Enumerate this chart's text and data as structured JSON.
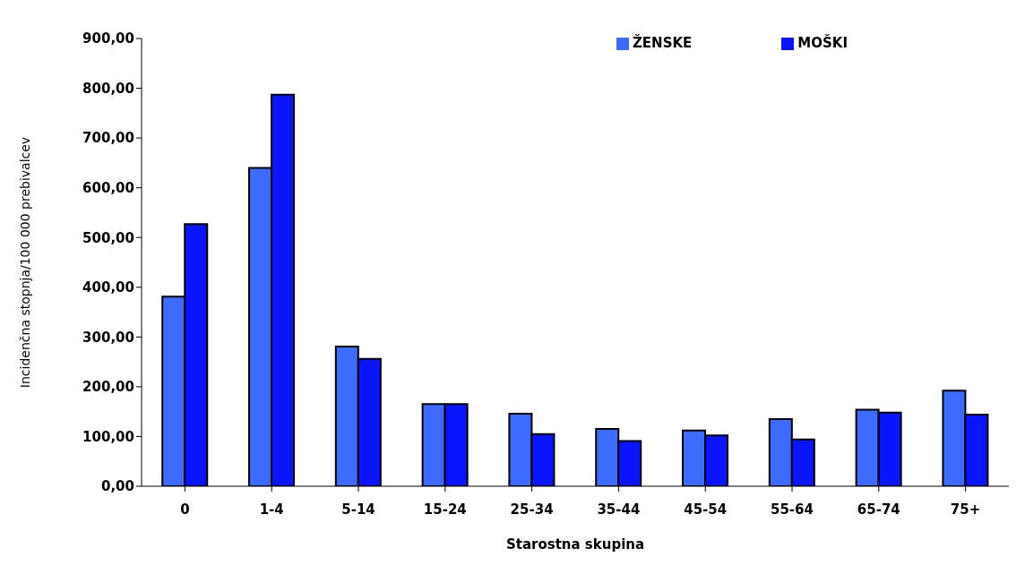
{
  "chart_data": {
    "type": "bar",
    "xlabel": "Starostna skupina",
    "ylabel": "Incidenčna stopnja/100 000 prebivalcev",
    "categories": [
      "0",
      "1-4",
      "5-14",
      "15-24",
      "25-34",
      "35-44",
      "45-54",
      "55-64",
      "65-74",
      "75+"
    ],
    "series": [
      {
        "name": "ŽENSKE",
        "color": "#3d6bff",
        "values": [
          381,
          640,
          281,
          165,
          146,
          115,
          112,
          135,
          154,
          192
        ]
      },
      {
        "name": "MOŠKI",
        "color": "#0a14ff",
        "values": [
          527,
          787,
          256,
          165,
          105,
          91,
          102,
          94,
          148,
          144
        ]
      }
    ],
    "ylim": [
      0,
      900
    ],
    "yticks": [
      {
        "value": 0,
        "label": "0,00"
      },
      {
        "value": 100,
        "label": "100,00"
      },
      {
        "value": 200,
        "label": "200,00"
      },
      {
        "value": 300,
        "label": "300,00"
      },
      {
        "value": 400,
        "label": "400,00"
      },
      {
        "value": 500,
        "label": "500,00"
      },
      {
        "value": 600,
        "label": "600,00"
      },
      {
        "value": 700,
        "label": "700,00"
      },
      {
        "value": 800,
        "label": "800,00"
      },
      {
        "value": 900,
        "label": "900,00"
      }
    ],
    "grid": false,
    "legend": "top right"
  }
}
